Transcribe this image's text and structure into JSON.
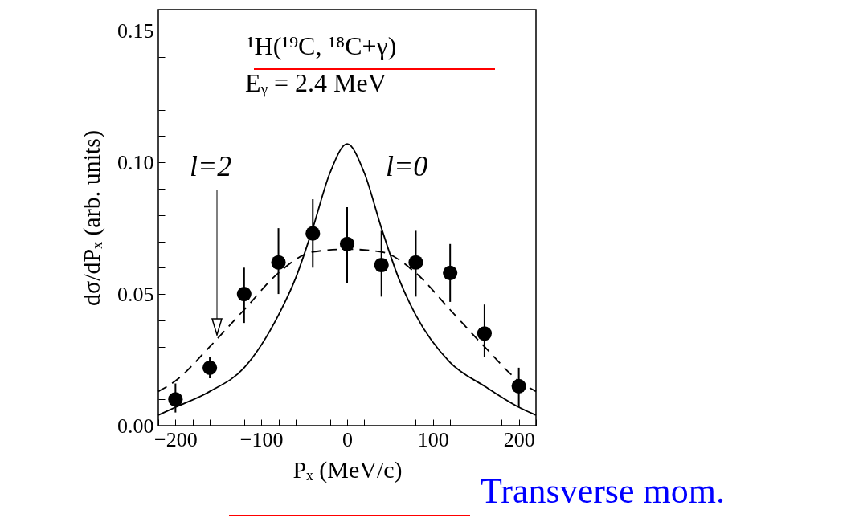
{
  "chart_data": {
    "type": "scatter",
    "title": "¹H(¹⁹C, ¹⁸C+γ)",
    "subtitle": "Eᵧ = 2.4 MeV",
    "xlabel": "Pₓ (MeV/c)",
    "ylabel": "dσ/dPₓ (arb. units)",
    "x": [
      -200,
      -160,
      -120,
      -80,
      -40,
      0,
      40,
      80,
      120,
      160,
      200
    ],
    "series": [
      {
        "color": "#000000",
        "values": [
          0.01,
          0.022,
          0.05,
          0.062,
          0.073,
          0.069,
          0.061,
          0.062,
          0.058,
          0.035,
          0.015
        ],
        "errors": [
          [
            0.005,
            0.016
          ],
          [
            0.018,
            0.026
          ],
          [
            0.039,
            0.06
          ],
          [
            0.05,
            0.075
          ],
          [
            0.06,
            0.086
          ],
          [
            0.054,
            0.083
          ],
          [
            0.049,
            0.074
          ],
          [
            0.049,
            0.074
          ],
          [
            0.047,
            0.069
          ],
          [
            0.026,
            0.046
          ],
          [
            0.007,
            0.022
          ]
        ]
      },
      {
        "type": "line",
        "color": "#000000",
        "line_style": "solid",
        "marker": "none",
        "x": [
          -220,
          -200,
          -160,
          -120,
          -80,
          -60,
          -40,
          -20,
          0,
          20,
          40,
          60,
          80,
          120,
          160,
          200,
          220
        ],
        "values": [
          0.004,
          0.007,
          0.013,
          0.022,
          0.042,
          0.056,
          0.075,
          0.096,
          0.107,
          0.096,
          0.075,
          0.056,
          0.042,
          0.024,
          0.015,
          0.007,
          0.004
        ]
      },
      {
        "type": "line",
        "color": "#000000",
        "line_style": "dashed",
        "marker": "none",
        "x": [
          -220,
          -200,
          -160,
          -120,
          -80,
          -40,
          0,
          40,
          80,
          120,
          160,
          200,
          220
        ],
        "values": [
          0.013,
          0.017,
          0.03,
          0.044,
          0.058,
          0.066,
          0.067,
          0.066,
          0.058,
          0.044,
          0.03,
          0.017,
          0.013
        ]
      }
    ],
    "annotations": [
      "l=2",
      "l=0",
      "Transverse mom."
    ],
    "xlim": [
      -220,
      220
    ],
    "ylim": [
      0,
      0.158
    ],
    "xticks": [
      {
        "value": -220,
        "label": null
      },
      {
        "value": -200,
        "label": "−200"
      },
      {
        "value": -180,
        "label": null
      },
      {
        "value": -160,
        "label": null
      },
      {
        "value": -140,
        "label": null
      },
      {
        "value": -120,
        "label": null
      },
      {
        "value": -100,
        "label": "−100"
      },
      {
        "value": -80,
        "label": null
      },
      {
        "value": -60,
        "label": null
      },
      {
        "value": -40,
        "label": null
      },
      {
        "value": -20,
        "label": null
      },
      0,
      {
        "value": 20,
        "label": null
      },
      {
        "value": 40,
        "label": null
      },
      {
        "value": 60,
        "label": null
      },
      {
        "value": 80,
        "label": null
      },
      100,
      {
        "value": 120,
        "label": null
      },
      {
        "value": 140,
        "label": null
      },
      {
        "value": 160,
        "label": null
      },
      {
        "value": 180,
        "label": null
      },
      200,
      {
        "value": 220,
        "label": null
      }
    ],
    "yticks": [
      {
        "value": 0,
        "label": "0.00"
      },
      {
        "value": 0.01,
        "label": null
      },
      {
        "value": 0.02,
        "label": null
      },
      {
        "value": 0.03,
        "label": null
      },
      {
        "value": 0.04,
        "label": null
      },
      {
        "value": 0.05,
        "label": "0.05"
      },
      {
        "value": 0.06,
        "label": null
      },
      {
        "value": 0.07,
        "label": null
      },
      {
        "value": 0.08,
        "label": null
      },
      {
        "value": 0.09,
        "label": null
      },
      {
        "value": 0.1,
        "label": "0.10"
      },
      {
        "value": 0.11,
        "label": null
      },
      {
        "value": 0.12,
        "label": null
      },
      {
        "value": 0.13,
        "label": null
      },
      {
        "value": 0.14,
        "label": null
      },
      {
        "value": 0.15,
        "label": "0.15"
      }
    ],
    "marker": "circle"
  }
}
